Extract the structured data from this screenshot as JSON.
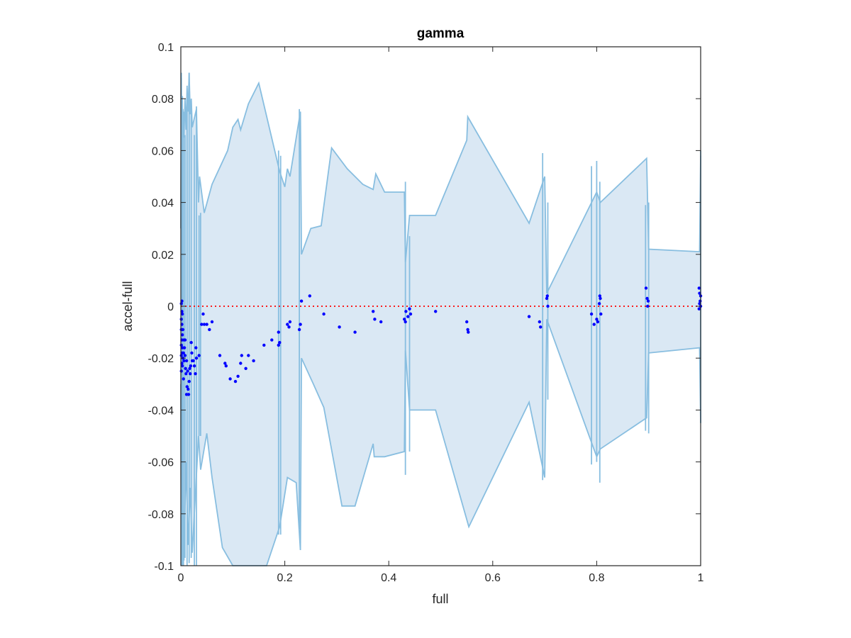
{
  "chart_data": {
    "type": "scatter",
    "title": "gamma",
    "xlabel": "full",
    "ylabel": "accel-full",
    "xlim": [
      0,
      1
    ],
    "ylim": [
      -0.1,
      0.1
    ],
    "xticks": [
      0,
      0.2,
      0.4,
      0.6,
      0.8,
      1
    ],
    "xtick_labels": [
      "0",
      "0.2",
      "0.4",
      "0.6",
      "0.8",
      "1"
    ],
    "yticks": [
      -0.1,
      -0.08,
      -0.06,
      -0.04,
      -0.02,
      0,
      0.02,
      0.04,
      0.06,
      0.08,
      0.1
    ],
    "ytick_labels": [
      "-0.1",
      "-0.08",
      "-0.06",
      "-0.04",
      "-0.02",
      "0",
      "0.02",
      "0.04",
      "0.06",
      "0.08",
      "0.1"
    ],
    "grid": false,
    "colors": {
      "band_fill": "#dae8f4",
      "band_edge": "#88bee0",
      "points": "#0000ff",
      "reference": "#ff0000",
      "axes": "#262626"
    },
    "reference_line": {
      "y": 0,
      "style": "dotted"
    },
    "band_upper": [
      [
        0,
        0.03
      ],
      [
        0.001,
        0.088
      ],
      [
        0.002,
        0.06
      ],
      [
        0.004,
        0.076
      ],
      [
        0.006,
        0.065
      ],
      [
        0.008,
        0.08
      ],
      [
        0.01,
        0.068
      ],
      [
        0.012,
        0.084
      ],
      [
        0.014,
        0.075
      ],
      [
        0.016,
        0.09
      ],
      [
        0.018,
        0.074
      ],
      [
        0.02,
        0.08
      ],
      [
        0.022,
        0.069
      ],
      [
        0.03,
        0.076
      ],
      [
        0.034,
        0.04
      ],
      [
        0.036,
        0.05
      ],
      [
        0.045,
        0.036
      ],
      [
        0.06,
        0.047
      ],
      [
        0.09,
        0.06
      ],
      [
        0.1,
        0.069
      ],
      [
        0.11,
        0.072
      ],
      [
        0.115,
        0.068
      ],
      [
        0.13,
        0.078
      ],
      [
        0.15,
        0.086
      ],
      [
        0.19,
        0.052
      ],
      [
        0.2,
        0.046
      ],
      [
        0.205,
        0.053
      ],
      [
        0.21,
        0.05
      ],
      [
        0.23,
        0.075
      ],
      [
        0.232,
        0.02
      ],
      [
        0.25,
        0.03
      ],
      [
        0.27,
        0.031
      ],
      [
        0.29,
        0.061
      ],
      [
        0.32,
        0.053
      ],
      [
        0.35,
        0.047
      ],
      [
        0.37,
        0.045
      ],
      [
        0.375,
        0.051
      ],
      [
        0.392,
        0.044
      ],
      [
        0.43,
        0.044
      ],
      [
        0.432,
        0.017
      ],
      [
        0.44,
        0.035
      ],
      [
        0.49,
        0.035
      ],
      [
        0.55,
        0.064
      ],
      [
        0.552,
        0.073
      ],
      [
        0.67,
        0.032
      ],
      [
        0.7,
        0.05
      ],
      [
        0.704,
        0.005
      ],
      [
        0.8,
        0.044
      ],
      [
        0.807,
        0.04
      ],
      [
        0.896,
        0.057
      ],
      [
        0.9,
        0.022
      ],
      [
        0.998,
        0.021
      ],
      [
        1,
        0.058
      ]
    ],
    "band_lower": [
      [
        0,
        -0.03
      ],
      [
        0.001,
        -0.1
      ],
      [
        0.004,
        -0.055
      ],
      [
        0.006,
        -0.098
      ],
      [
        0.01,
        -0.06
      ],
      [
        0.014,
        -0.092
      ],
      [
        0.018,
        -0.07
      ],
      [
        0.022,
        -0.095
      ],
      [
        0.03,
        -0.065
      ],
      [
        0.034,
        -0.05
      ],
      [
        0.038,
        -0.063
      ],
      [
        0.05,
        -0.049
      ],
      [
        0.06,
        -0.066
      ],
      [
        0.08,
        -0.093
      ],
      [
        0.1,
        -0.1
      ],
      [
        0.165,
        -0.1
      ],
      [
        0.19,
        -0.085
      ],
      [
        0.205,
        -0.066
      ],
      [
        0.222,
        -0.068
      ],
      [
        0.23,
        -0.094
      ],
      [
        0.232,
        -0.02
      ],
      [
        0.255,
        -0.03
      ],
      [
        0.275,
        -0.039
      ],
      [
        0.31,
        -0.077
      ],
      [
        0.335,
        -0.077
      ],
      [
        0.37,
        -0.053
      ],
      [
        0.372,
        -0.058
      ],
      [
        0.392,
        -0.058
      ],
      [
        0.43,
        -0.056
      ],
      [
        0.432,
        -0.017
      ],
      [
        0.44,
        -0.04
      ],
      [
        0.49,
        -0.04
      ],
      [
        0.554,
        -0.085
      ],
      [
        0.67,
        -0.037
      ],
      [
        0.7,
        -0.066
      ],
      [
        0.704,
        -0.005
      ],
      [
        0.8,
        -0.058
      ],
      [
        0.807,
        -0.055
      ],
      [
        0.896,
        -0.043
      ],
      [
        0.9,
        -0.018
      ],
      [
        0.998,
        -0.016
      ],
      [
        1,
        -0.045
      ]
    ],
    "band_spikes": [
      [
        0.001,
        -0.1,
        0.09
      ],
      [
        0.003,
        -0.1,
        0.081
      ],
      [
        0.005,
        -0.1,
        0.075
      ],
      [
        0.008,
        -0.097,
        0.066
      ],
      [
        0.012,
        -0.1,
        0.085
      ],
      [
        0.016,
        -0.099,
        0.09
      ],
      [
        0.02,
        -0.097,
        0.079
      ],
      [
        0.026,
        -0.1,
        0.066
      ],
      [
        0.03,
        -0.1,
        0.077
      ],
      [
        0.035,
        -0.05,
        0.035
      ],
      [
        0.038,
        -0.05,
        0.036
      ],
      [
        0.188,
        -0.088,
        0.06
      ],
      [
        0.192,
        -0.088,
        0.058
      ],
      [
        0.228,
        -0.086,
        0.076
      ],
      [
        0.432,
        -0.065,
        0.048
      ],
      [
        0.44,
        -0.056,
        0.027
      ],
      [
        0.696,
        -0.067,
        0.059
      ],
      [
        0.706,
        -0.036,
        0.04
      ],
      [
        0.79,
        -0.061,
        0.054
      ],
      [
        0.8,
        -0.06,
        0.056
      ],
      [
        0.806,
        -0.068,
        0.048
      ],
      [
        0.894,
        -0.048,
        0.039
      ],
      [
        0.9,
        -0.049,
        0.04
      ],
      [
        1,
        -0.045,
        0.06
      ]
    ],
    "points": [
      [
        0.001,
        0.001
      ],
      [
        0.002,
        -0.002
      ],
      [
        0.001,
        -0.005
      ],
      [
        0.002,
        -0.007
      ],
      [
        0.001,
        -0.009
      ],
      [
        0.003,
        -0.011
      ],
      [
        0.002,
        -0.013
      ],
      [
        0.001,
        -0.015
      ],
      [
        0.003,
        -0.016
      ],
      [
        0.002,
        -0.018
      ],
      [
        0.001,
        -0.019
      ],
      [
        0.004,
        -0.02
      ],
      [
        0.002,
        -0.022
      ],
      [
        0.003,
        -0.023
      ],
      [
        0.001,
        -0.025
      ],
      [
        0.005,
        -0.028
      ],
      [
        0.002,
        0.002
      ],
      [
        0.003,
        -0.003
      ],
      [
        0.006,
        -0.013
      ],
      [
        0.007,
        -0.016
      ],
      [
        0.005,
        -0.018
      ],
      [
        0.008,
        -0.019
      ],
      [
        0.006,
        -0.021
      ],
      [
        0.009,
        -0.024
      ],
      [
        0.01,
        -0.026
      ],
      [
        0.011,
        -0.021
      ],
      [
        0.012,
        -0.031
      ],
      [
        0.014,
        -0.032
      ],
      [
        0.015,
        -0.034
      ],
      [
        0.016,
        -0.029
      ],
      [
        0.018,
        -0.026
      ],
      [
        0.019,
        -0.023
      ],
      [
        0.02,
        -0.014
      ],
      [
        0.021,
        -0.018
      ],
      [
        0.022,
        -0.021
      ],
      [
        0.024,
        -0.021
      ],
      [
        0.026,
        -0.023
      ],
      [
        0.028,
        -0.026
      ],
      [
        0.029,
        -0.016
      ],
      [
        0.03,
        -0.02
      ],
      [
        0.013,
        -0.025
      ],
      [
        0.017,
        -0.024
      ],
      [
        0.011,
        -0.034
      ],
      [
        0.008,
        -0.013
      ],
      [
        0.004,
        -0.009
      ],
      [
        0.035,
        -0.019
      ],
      [
        0.04,
        -0.007
      ],
      [
        0.043,
        -0.003
      ],
      [
        0.045,
        -0.007
      ],
      [
        0.05,
        -0.007
      ],
      [
        0.055,
        -0.009
      ],
      [
        0.06,
        -0.006
      ],
      [
        0.075,
        -0.019
      ],
      [
        0.085,
        -0.022
      ],
      [
        0.087,
        -0.023
      ],
      [
        0.095,
        -0.028
      ],
      [
        0.105,
        -0.029
      ],
      [
        0.11,
        -0.027
      ],
      [
        0.115,
        -0.022
      ],
      [
        0.117,
        -0.019
      ],
      [
        0.125,
        -0.024
      ],
      [
        0.13,
        -0.019
      ],
      [
        0.14,
        -0.021
      ],
      [
        0.16,
        -0.015
      ],
      [
        0.175,
        -0.013
      ],
      [
        0.188,
        -0.015
      ],
      [
        0.188,
        -0.01
      ],
      [
        0.19,
        -0.014
      ],
      [
        0.205,
        -0.007
      ],
      [
        0.208,
        -0.008
      ],
      [
        0.21,
        -0.006
      ],
      [
        0.228,
        -0.009
      ],
      [
        0.23,
        -0.007
      ],
      [
        0.232,
        0.002
      ],
      [
        0.248,
        0.004
      ],
      [
        0.275,
        -0.003
      ],
      [
        0.305,
        -0.008
      ],
      [
        0.335,
        -0.01
      ],
      [
        0.37,
        -0.002
      ],
      [
        0.373,
        -0.005
      ],
      [
        0.385,
        -0.006
      ],
      [
        0.43,
        -0.005
      ],
      [
        0.432,
        -0.006
      ],
      [
        0.433,
        -0.002
      ],
      [
        0.437,
        -0.004
      ],
      [
        0.44,
        -0.001
      ],
      [
        0.442,
        -0.003
      ],
      [
        0.49,
        -0.002
      ],
      [
        0.55,
        -0.006
      ],
      [
        0.552,
        -0.009
      ],
      [
        0.553,
        -0.01
      ],
      [
        0.67,
        -0.004
      ],
      [
        0.69,
        -0.006
      ],
      [
        0.692,
        -0.008
      ],
      [
        0.705,
        0.004
      ],
      [
        0.706,
        0
      ],
      [
        0.704,
        0.003
      ],
      [
        0.79,
        -0.003
      ],
      [
        0.795,
        -0.007
      ],
      [
        0.8,
        -0.005
      ],
      [
        0.802,
        -0.006
      ],
      [
        0.805,
        0.001
      ],
      [
        0.806,
        0.004
      ],
      [
        0.807,
        0.003
      ],
      [
        0.808,
        -0.003
      ],
      [
        0.895,
        0.007
      ],
      [
        0.897,
        0.003
      ],
      [
        0.898,
        0
      ],
      [
        0.899,
        0.002
      ],
      [
        0.997,
        0.007
      ],
      [
        0.998,
        0.005
      ],
      [
        0.999,
        0.002
      ],
      [
        1,
        0
      ],
      [
        0.998,
        0.001
      ],
      [
        1,
        0.004
      ],
      [
        0.997,
        -0.001
      ]
    ]
  }
}
